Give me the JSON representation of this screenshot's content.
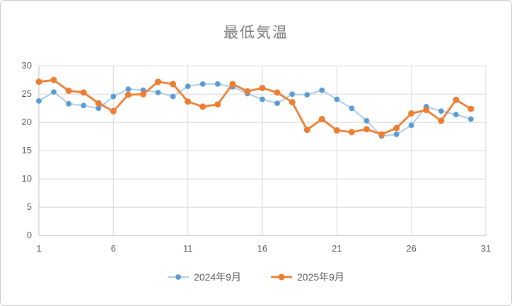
{
  "chart_data": {
    "type": "line",
    "title": "最低気温",
    "xlabel": "",
    "ylabel": "",
    "x": [
      1,
      2,
      3,
      4,
      5,
      6,
      7,
      8,
      9,
      10,
      11,
      12,
      13,
      14,
      15,
      16,
      17,
      18,
      19,
      20,
      21,
      22,
      23,
      24,
      25,
      26,
      27,
      28,
      29,
      30
    ],
    "series": [
      {
        "name": "2024年9月",
        "marker_color": "#5b9bd5",
        "line_color": "#a9cbe9",
        "values": [
          23.8,
          25.4,
          23.3,
          23.0,
          22.5,
          24.6,
          25.9,
          25.7,
          25.3,
          24.6,
          26.4,
          26.8,
          26.8,
          26.3,
          25.1,
          24.1,
          23.4,
          25.0,
          24.9,
          25.7,
          24.1,
          22.5,
          20.3,
          17.6,
          17.9,
          19.5,
          22.8,
          22.0,
          21.4,
          20.6
        ]
      },
      {
        "name": "2025年9月",
        "marker_color": "#ed7d31",
        "line_color": "#ed7d31",
        "values": [
          27.2,
          27.5,
          25.6,
          25.3,
          23.4,
          22.0,
          24.9,
          25.0,
          27.2,
          26.8,
          23.7,
          22.8,
          23.2,
          26.8,
          25.5,
          26.1,
          25.3,
          23.6,
          18.7,
          20.6,
          18.6,
          18.3,
          18.8,
          17.9,
          19.0,
          21.6,
          22.2,
          20.3,
          24.0,
          22.4
        ]
      }
    ],
    "xticks": [
      1,
      6,
      11,
      16,
      21,
      26,
      31
    ],
    "yticks": [
      30,
      25,
      20,
      15,
      10,
      5,
      0
    ],
    "xlim": [
      1,
      31
    ],
    "ylim": [
      0,
      30
    ],
    "grid": true,
    "legend_position": "bottom",
    "gridline_color": "#d9d9d9",
    "axis_line_color": "#bfbfbf",
    "tick_label_color": "#595959",
    "title_color": "#7a7a7a"
  }
}
